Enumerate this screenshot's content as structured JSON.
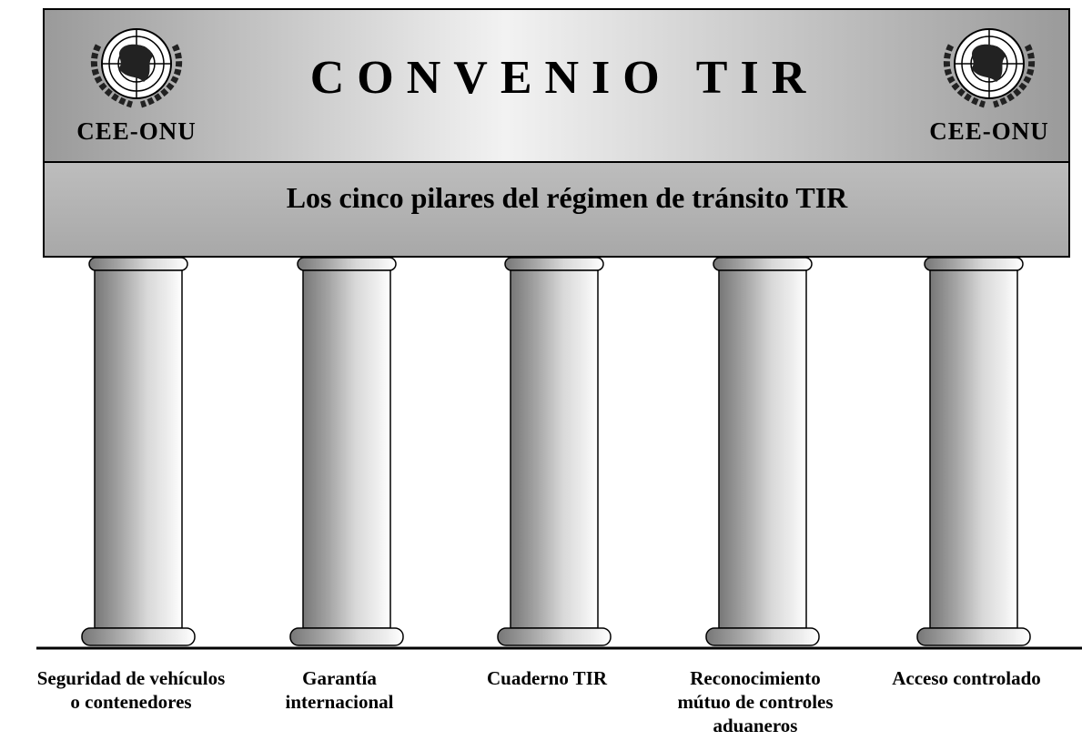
{
  "header": {
    "title": "CONVENIO TIR",
    "subtitle": "Los cinco pilares del régimen de tránsito TIR",
    "logo_left": "CEE-ONU",
    "logo_right": "CEE-ONU"
  },
  "pillars": [
    {
      "label": [
        "Seguridad de vehículos",
        "o contenedores"
      ]
    },
    {
      "label": [
        "Garantía",
        "internacional"
      ]
    },
    {
      "label": [
        "Cuaderno TIR"
      ]
    },
    {
      "label": [
        "Reconocimiento",
        "mútuo de controles",
        "aduaneros"
      ]
    },
    {
      "label": [
        "Acceso controlado"
      ]
    }
  ]
}
